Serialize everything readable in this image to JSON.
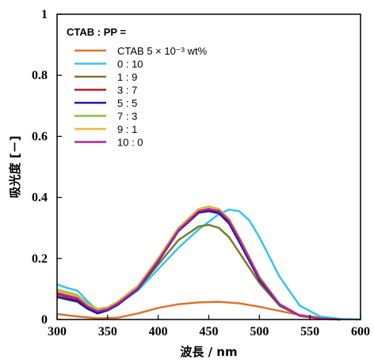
{
  "chart_data": {
    "type": "line",
    "xlabel": "波長 / nm",
    "ylabel": "吸光度 [－]",
    "xlim": [
      300,
      600
    ],
    "ylim": [
      0,
      1
    ],
    "x_ticks": [
      "300",
      "350",
      "400",
      "450",
      "500",
      "550",
      "600"
    ],
    "y_ticks": [
      "0",
      "0.2",
      "0.4",
      "0.6",
      "0.8",
      "1"
    ],
    "grid": false,
    "legend": {
      "title": "CTAB : PP =",
      "placement": "top-left"
    },
    "series": [
      {
        "name": "CTAB 5 × 10⁻³ wt%",
        "color": "#d8742e",
        "x": [
          300,
          320,
          340,
          360,
          380,
          400,
          420,
          440,
          460,
          480,
          500,
          520,
          540,
          560,
          580,
          600
        ],
        "y": [
          0.018,
          0.01,
          0.004,
          0.006,
          0.02,
          0.038,
          0.05,
          0.056,
          0.058,
          0.053,
          0.042,
          0.028,
          0.015,
          0.006,
          0.002,
          0.0
        ]
      },
      {
        "name": "0 : 10",
        "color": "#36c4e8",
        "x": [
          300,
          310,
          320,
          330,
          340,
          350,
          360,
          380,
          400,
          420,
          440,
          460,
          470,
          480,
          490,
          500,
          520,
          540,
          560,
          580,
          600
        ],
        "y": [
          0.115,
          0.103,
          0.095,
          0.06,
          0.03,
          0.035,
          0.05,
          0.095,
          0.165,
          0.235,
          0.295,
          0.345,
          0.36,
          0.355,
          0.325,
          0.27,
          0.14,
          0.045,
          0.01,
          0.002,
          0.0
        ]
      },
      {
        "name": "1 : 9",
        "color": "#7a7a2e",
        "x": [
          300,
          310,
          320,
          330,
          340,
          350,
          360,
          380,
          400,
          420,
          440,
          450,
          460,
          470,
          480,
          500,
          520,
          540,
          560,
          580
        ],
        "y": [
          0.073,
          0.065,
          0.058,
          0.035,
          0.02,
          0.03,
          0.05,
          0.1,
          0.18,
          0.26,
          0.305,
          0.31,
          0.3,
          0.27,
          0.22,
          0.12,
          0.045,
          0.012,
          0.003,
          0.0
        ]
      },
      {
        "name": "3 : 7",
        "color": "#c21a1a",
        "x": [
          300,
          310,
          320,
          330,
          340,
          350,
          360,
          380,
          400,
          420,
          440,
          450,
          460,
          470,
          480,
          500,
          520,
          540,
          560,
          580
        ],
        "y": [
          0.083,
          0.074,
          0.066,
          0.04,
          0.025,
          0.033,
          0.05,
          0.1,
          0.19,
          0.29,
          0.35,
          0.356,
          0.35,
          0.318,
          0.26,
          0.135,
          0.05,
          0.012,
          0.003,
          0.0
        ]
      },
      {
        "name": "5 : 5",
        "color": "#1a1aa8",
        "x": [
          300,
          310,
          320,
          330,
          340,
          350,
          360,
          380,
          400,
          420,
          440,
          450,
          460,
          470,
          480,
          500,
          520,
          540,
          560,
          580
        ],
        "y": [
          0.075,
          0.067,
          0.06,
          0.036,
          0.02,
          0.03,
          0.048,
          0.1,
          0.19,
          0.29,
          0.35,
          0.355,
          0.348,
          0.315,
          0.255,
          0.13,
          0.048,
          0.012,
          0.003,
          0.0
        ]
      },
      {
        "name": "7 : 3",
        "color": "#8ec43a",
        "x": [
          300,
          310,
          320,
          330,
          340,
          350,
          360,
          380,
          400,
          420,
          440,
          450,
          460,
          470,
          480,
          500,
          520,
          540,
          560,
          580
        ],
        "y": [
          0.098,
          0.089,
          0.08,
          0.052,
          0.034,
          0.04,
          0.058,
          0.11,
          0.2,
          0.3,
          0.362,
          0.37,
          0.362,
          0.33,
          0.27,
          0.14,
          0.05,
          0.013,
          0.003,
          0.0
        ]
      },
      {
        "name": "9 : 1",
        "color": "#f5b73b",
        "x": [
          300,
          310,
          320,
          330,
          340,
          350,
          360,
          380,
          400,
          420,
          440,
          450,
          460,
          470,
          480,
          500,
          520,
          540,
          560,
          580
        ],
        "y": [
          0.092,
          0.083,
          0.075,
          0.048,
          0.03,
          0.037,
          0.055,
          0.107,
          0.197,
          0.297,
          0.36,
          0.367,
          0.36,
          0.328,
          0.268,
          0.138,
          0.05,
          0.013,
          0.003,
          0.0
        ]
      },
      {
        "name": "10 : 0",
        "color": "#b5249a",
        "x": [
          300,
          310,
          320,
          330,
          340,
          350,
          360,
          380,
          400,
          420,
          440,
          450,
          460,
          470,
          480,
          500,
          520,
          540,
          560,
          580
        ],
        "y": [
          0.087,
          0.078,
          0.07,
          0.043,
          0.027,
          0.034,
          0.052,
          0.103,
          0.193,
          0.293,
          0.355,
          0.362,
          0.356,
          0.324,
          0.265,
          0.136,
          0.05,
          0.013,
          0.003,
          0.0
        ]
      }
    ]
  }
}
